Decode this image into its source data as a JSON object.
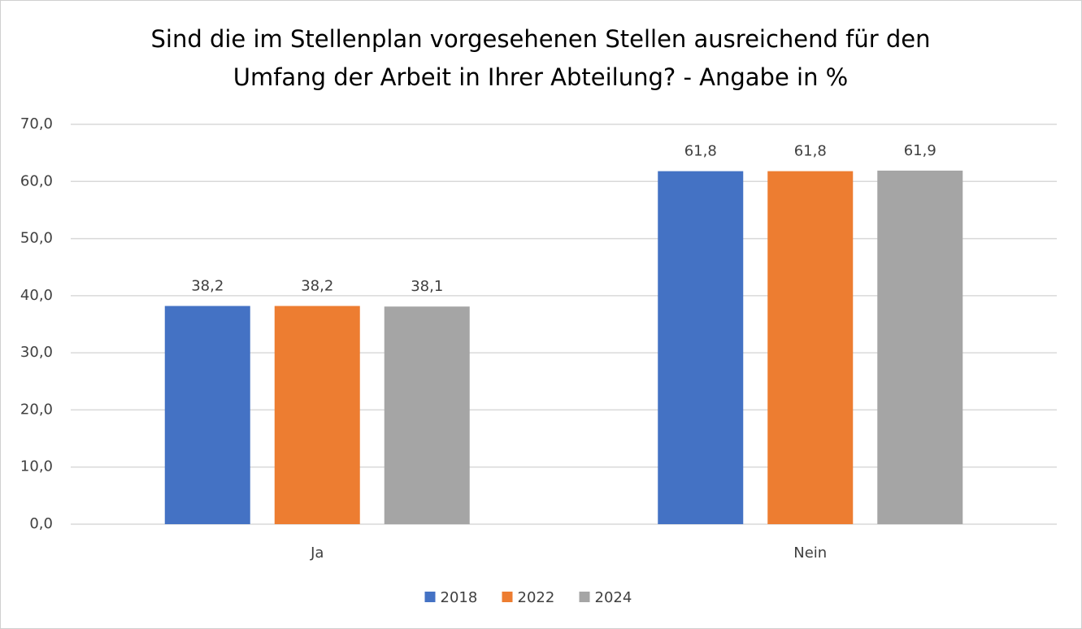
{
  "chart_data": {
    "type": "bar",
    "title": [
      "Sind die im Stellenplan vorgesehenen Stellen ausreichend für den",
      "Umfang der Arbeit in Ihrer Abteilung? - Angabe in %"
    ],
    "categories": [
      "Ja",
      "Nein"
    ],
    "series": [
      {
        "name": "2018",
        "color": "#4472c4",
        "values": [
          38.2,
          61.8
        ],
        "value_labels": [
          "38,2",
          "61,8"
        ]
      },
      {
        "name": "2022",
        "color": "#ed7d31",
        "values": [
          38.2,
          61.8
        ],
        "value_labels": [
          "38,2",
          "61,8"
        ]
      },
      {
        "name": "2024",
        "color": "#a5a5a5",
        "values": [
          38.1,
          61.9
        ],
        "value_labels": [
          "38,1",
          "61,9"
        ]
      }
    ],
    "ylim": [
      0,
      70
    ],
    "yticks": [
      {
        "value": 0,
        "label": "0,0"
      },
      {
        "value": 10,
        "label": "10,0"
      },
      {
        "value": 20,
        "label": "20,0"
      },
      {
        "value": 30,
        "label": "30,0"
      },
      {
        "value": 40,
        "label": "40,0"
      },
      {
        "value": 50,
        "label": "50,0"
      },
      {
        "value": 60,
        "label": "60,0"
      },
      {
        "value": 70,
        "label": "70,0"
      }
    ],
    "grid": true,
    "legend": "bottom"
  }
}
